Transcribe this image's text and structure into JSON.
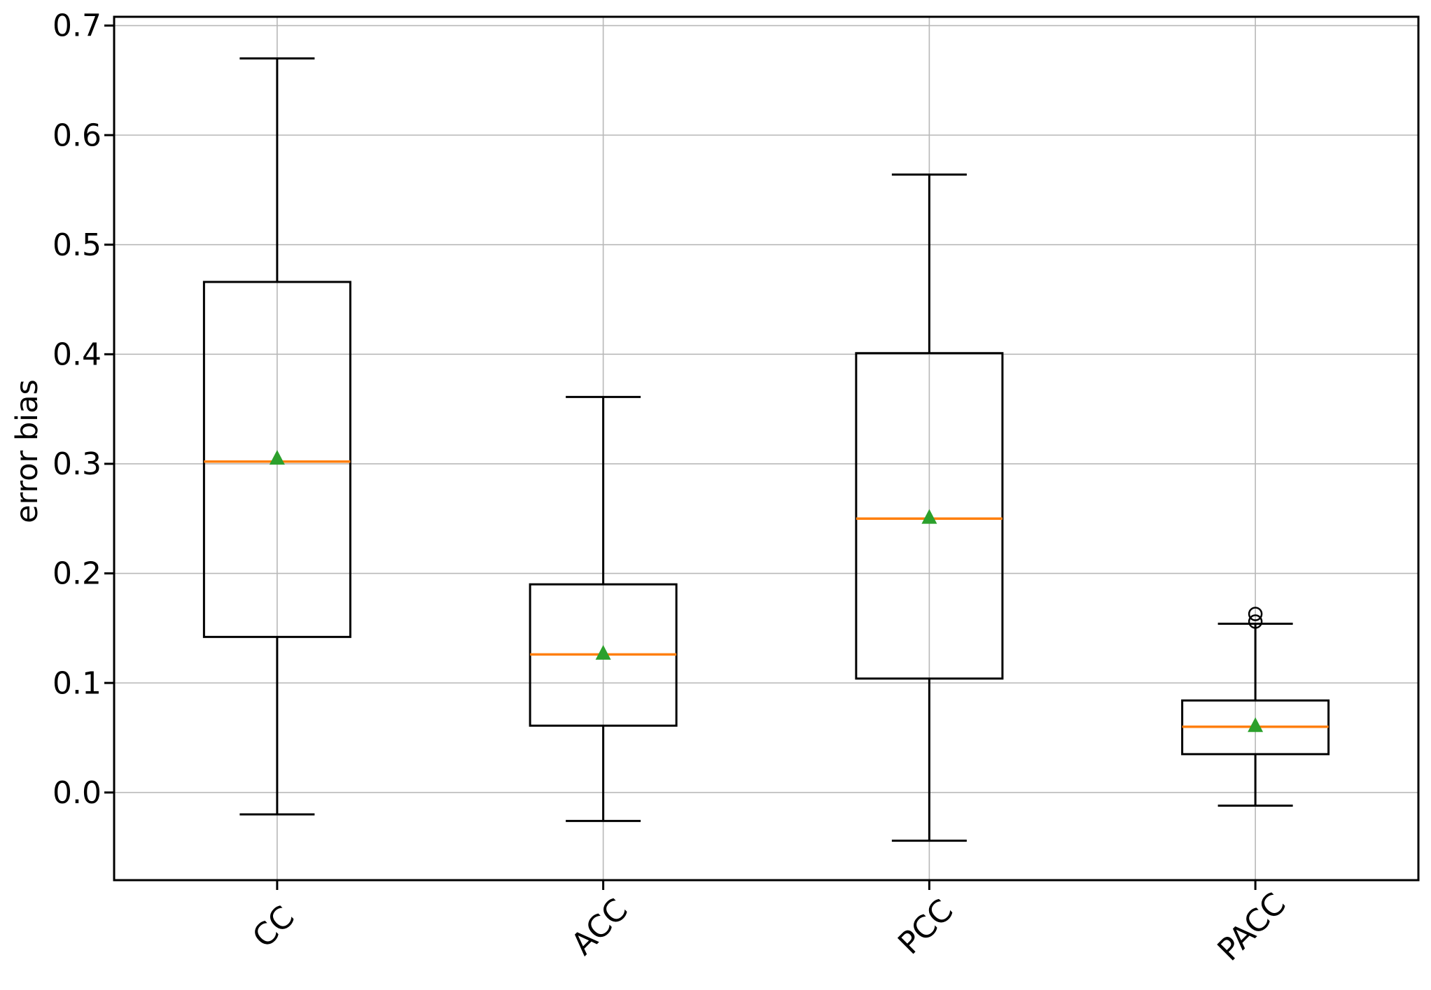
{
  "chart_data": {
    "type": "boxplot",
    "title": "",
    "xlabel": "",
    "ylabel": "error bias",
    "categories": [
      "CC",
      "ACC",
      "PCC",
      "PACC"
    ],
    "ytick_labels": [
      "0.0",
      "0.1",
      "0.2",
      "0.3",
      "0.4",
      "0.5",
      "0.6",
      "0.7"
    ],
    "yticks": [
      0.0,
      0.1,
      0.2,
      0.3,
      0.4,
      0.5,
      0.6,
      0.7
    ],
    "ylim": [
      -0.08,
      0.708
    ],
    "grid": true,
    "legend_position": "none",
    "colors": {
      "box": "#000000",
      "whisker": "#000000",
      "cap": "#000000",
      "median": "#ff7f0e",
      "mean_marker": "#2ca02c",
      "outlier_edge": "#000000",
      "grid": "#b8b8b8",
      "spine": "#000000",
      "text": "#000000",
      "background": "#ffffff"
    },
    "mean_marker_shape": "triangle-up",
    "series": [
      {
        "name": "CC",
        "whislo": -0.02,
        "q1": 0.142,
        "med": 0.302,
        "mean": 0.305,
        "q3": 0.466,
        "whishi": 0.67,
        "fliers": []
      },
      {
        "name": "ACC",
        "whislo": -0.026,
        "q1": 0.061,
        "med": 0.126,
        "mean": 0.127,
        "q3": 0.19,
        "whishi": 0.361,
        "fliers": []
      },
      {
        "name": "PCC",
        "whislo": -0.044,
        "q1": 0.104,
        "med": 0.25,
        "mean": 0.251,
        "q3": 0.401,
        "whishi": 0.564,
        "fliers": []
      },
      {
        "name": "PACC",
        "whislo": -0.012,
        "q1": 0.035,
        "med": 0.06,
        "mean": 0.061,
        "q3": 0.084,
        "whishi": 0.154,
        "fliers": [
          0.156,
          0.163
        ]
      }
    ]
  }
}
